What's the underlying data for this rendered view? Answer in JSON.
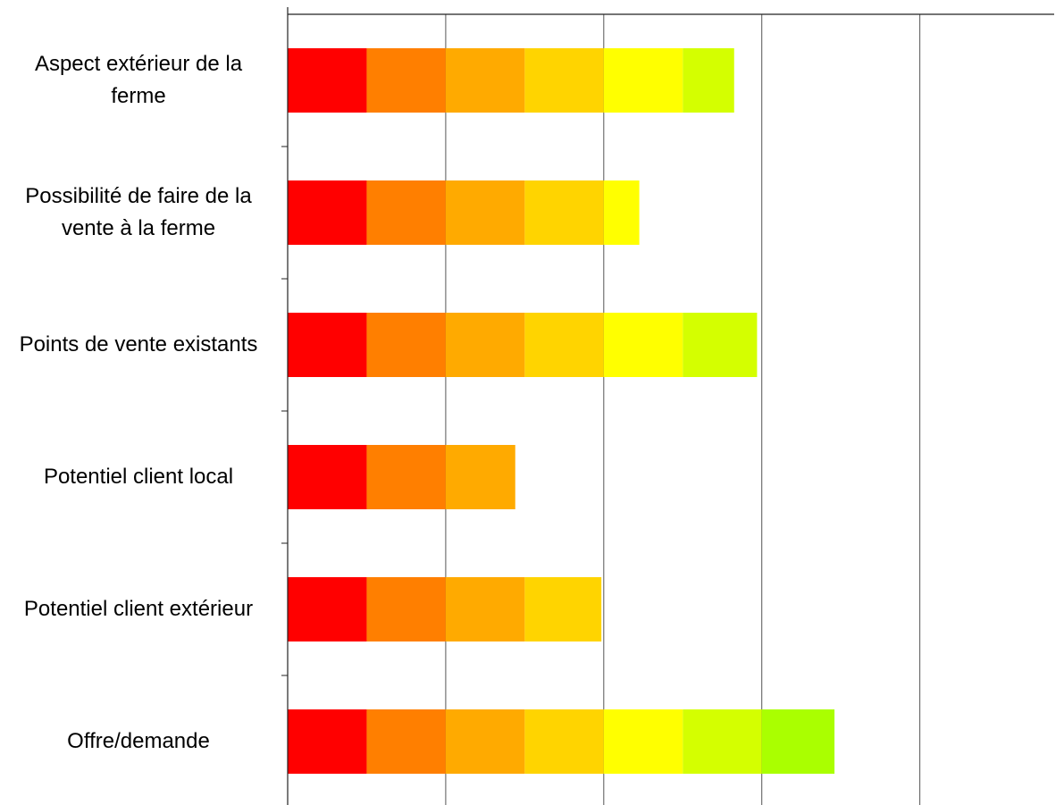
{
  "chart_data": {
    "type": "stacked-barh",
    "categories": [
      "Aspect extérieur de la ferme",
      "Possibilité de faire de la vente à la ferme",
      "Points de vente existants",
      "Potentiel client local",
      "Potentiel client extérieur",
      "Offre/demande"
    ],
    "series": [
      {
        "color": "#ff0000",
        "values": [
          1,
          1,
          1,
          1,
          1,
          1
        ]
      },
      {
        "color": "#ff7f00",
        "values": [
          1,
          1,
          1,
          1,
          1,
          1
        ]
      },
      {
        "color": "#ffaa00",
        "values": [
          1,
          1,
          1,
          0.88,
          1,
          1
        ]
      },
      {
        "color": "#ffd400",
        "values": [
          1,
          1,
          1,
          null,
          0.97,
          1
        ]
      },
      {
        "color": "#ffff00",
        "values": [
          1,
          0.45,
          1,
          null,
          null,
          1
        ]
      },
      {
        "color": "#d4ff00",
        "values": [
          0.65,
          null,
          0.94,
          null,
          null,
          1
        ]
      },
      {
        "color": "#aaff00",
        "values": [
          null,
          null,
          null,
          null,
          null,
          0.92
        ]
      }
    ],
    "xlim": [
      0,
      9.7
    ],
    "xticks": [
      0,
      2,
      4,
      6,
      8
    ],
    "grid": true
  }
}
